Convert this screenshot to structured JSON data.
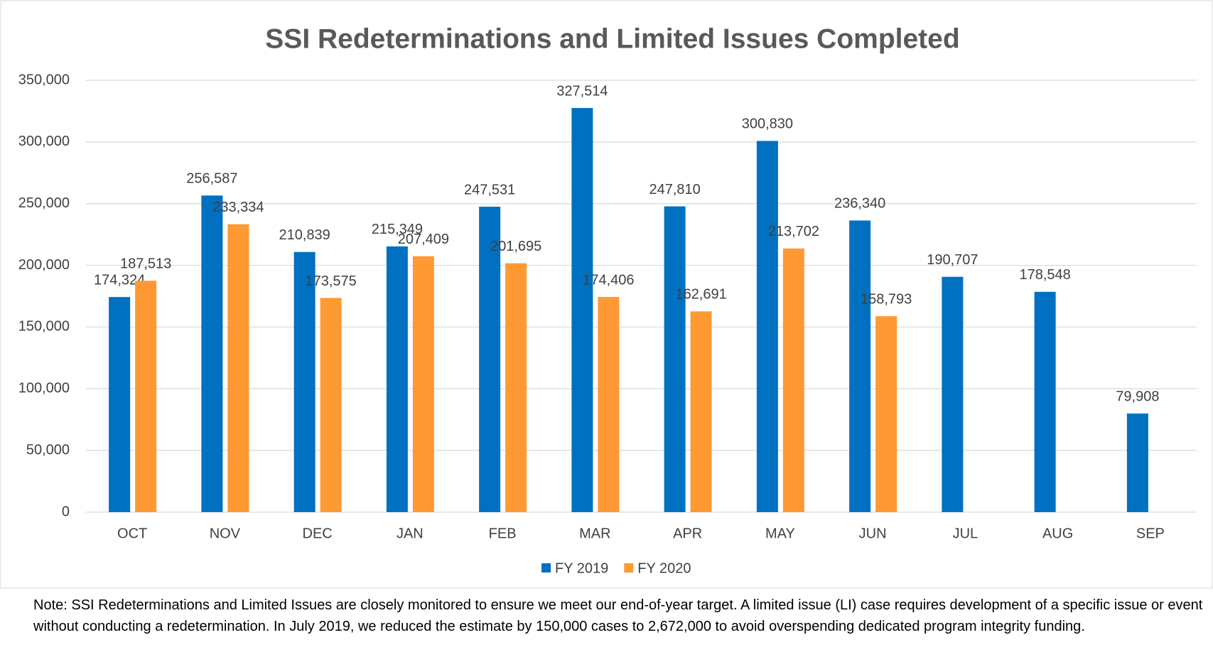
{
  "chart_data": {
    "type": "bar",
    "title": "SSI Redeterminations and Limited Issues Completed",
    "categories": [
      "OCT",
      "NOV",
      "DEC",
      "JAN",
      "FEB",
      "MAR",
      "APR",
      "MAY",
      "JUN",
      "JUL",
      "AUG",
      "SEP"
    ],
    "series": [
      {
        "name": "FY 2019",
        "color": "#0070c0",
        "values": [
          174324,
          256587,
          210839,
          215349,
          247531,
          327514,
          247810,
          300830,
          236340,
          190707,
          178548,
          79908
        ],
        "value_labels": [
          "174,324",
          "256,587",
          "210,839",
          "215,349",
          "247,531",
          "327,514",
          "247,810",
          "300,830",
          "236,340",
          "190,707",
          "178,548",
          "79,908"
        ]
      },
      {
        "name": "FY 2020",
        "color": "#ff9933",
        "values": [
          187513,
          233334,
          173575,
          207409,
          201695,
          174406,
          162691,
          213702,
          158793,
          null,
          null,
          null
        ],
        "value_labels": [
          "187,513",
          "233,334",
          "173,575",
          "207,409",
          "201,695",
          "174,406",
          "162,691",
          "213,702",
          "158,793",
          null,
          null,
          null
        ]
      }
    ],
    "ylim": [
      0,
      350000
    ],
    "yticks": [
      0,
      {
        "value": 50000,
        "label": "50,000"
      },
      {
        "value": 100000,
        "label": "100,000"
      },
      {
        "value": 150000,
        "label": "150,000"
      },
      {
        "value": 200000,
        "label": "200,000"
      },
      {
        "value": 250000,
        "label": "250,000"
      },
      {
        "value": 300000,
        "label": "300,000"
      },
      {
        "value": 350000,
        "label": "350,000"
      }
    ],
    "grid": true,
    "legend": "bottom",
    "note": "Note:  SSI Redeterminations and Limited Issues are closely monitored to ensure we meet our end-of-year target.  A limited issue (LI) case requires development of a specific issue or event without conducting a redetermination.  In July 2019, we reduced the estimate by 150,000 cases to 2,672,000 to avoid overspending dedicated program integrity funding."
  }
}
